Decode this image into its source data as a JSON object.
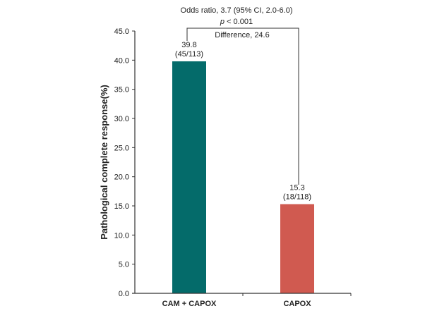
{
  "chart_data": {
    "type": "bar",
    "categories": [
      "CAM + CAPOX",
      "CAPOX"
    ],
    "values": [
      39.8,
      15.3
    ],
    "data_labels": [
      [
        "39.8",
        "(45/113)"
      ],
      [
        "15.3",
        "(18/118)"
      ]
    ],
    "colors": [
      "#046b6a",
      "#d05a50"
    ],
    "ylabel": "Pathological complete response(%)",
    "xlabel": "",
    "ylim": [
      0,
      45
    ],
    "yticks": [
      "0.0",
      "5.0",
      "10.0",
      "15.0",
      "20.0",
      "25.0",
      "30.0",
      "35.0",
      "40.0",
      "45.0"
    ],
    "grid": false,
    "annotations": {
      "odds_ratio": "Odds ratio, 3.7 (95% CI, 2.0-6.0)",
      "p_italic": "p",
      "p_value": " < 0.001",
      "difference": "Difference, 24.6"
    }
  }
}
